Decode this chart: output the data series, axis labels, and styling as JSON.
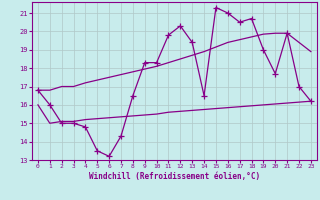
{
  "xlabel": "Windchill (Refroidissement éolien,°C)",
  "x": [
    0,
    1,
    2,
    3,
    4,
    5,
    6,
    7,
    8,
    9,
    10,
    11,
    12,
    13,
    14,
    15,
    16,
    17,
    18,
    19,
    20,
    21,
    22,
    23
  ],
  "line_main": [
    16.8,
    16.0,
    15.0,
    15.0,
    14.8,
    13.5,
    13.2,
    14.3,
    16.5,
    18.3,
    18.3,
    19.8,
    20.3,
    19.4,
    16.5,
    21.3,
    21.0,
    20.5,
    20.7,
    19.0,
    17.7,
    19.9,
    17.0,
    16.2
  ],
  "line_upper": [
    16.8,
    16.8,
    17.0,
    17.0,
    17.2,
    17.35,
    17.5,
    17.65,
    17.8,
    17.95,
    18.1,
    18.3,
    18.5,
    18.7,
    18.9,
    19.15,
    19.4,
    19.55,
    19.7,
    19.85,
    19.9,
    19.9,
    19.4,
    18.9
  ],
  "line_lower": [
    16.0,
    15.0,
    15.1,
    15.1,
    15.2,
    15.25,
    15.3,
    15.35,
    15.4,
    15.45,
    15.5,
    15.6,
    15.65,
    15.7,
    15.75,
    15.8,
    15.85,
    15.9,
    15.95,
    16.0,
    16.05,
    16.1,
    16.15,
    16.2
  ],
  "color": "#880088",
  "bg_color": "#c8ecec",
  "grid_color": "#b0c8c8",
  "ylim": [
    13,
    21.6
  ],
  "xlim": [
    -0.5,
    23.5
  ],
  "yticks": [
    13,
    14,
    15,
    16,
    17,
    18,
    19,
    20,
    21
  ],
  "xticks": [
    0,
    1,
    2,
    3,
    4,
    5,
    6,
    7,
    8,
    9,
    10,
    11,
    12,
    13,
    14,
    15,
    16,
    17,
    18,
    19,
    20,
    21,
    22,
    23
  ]
}
